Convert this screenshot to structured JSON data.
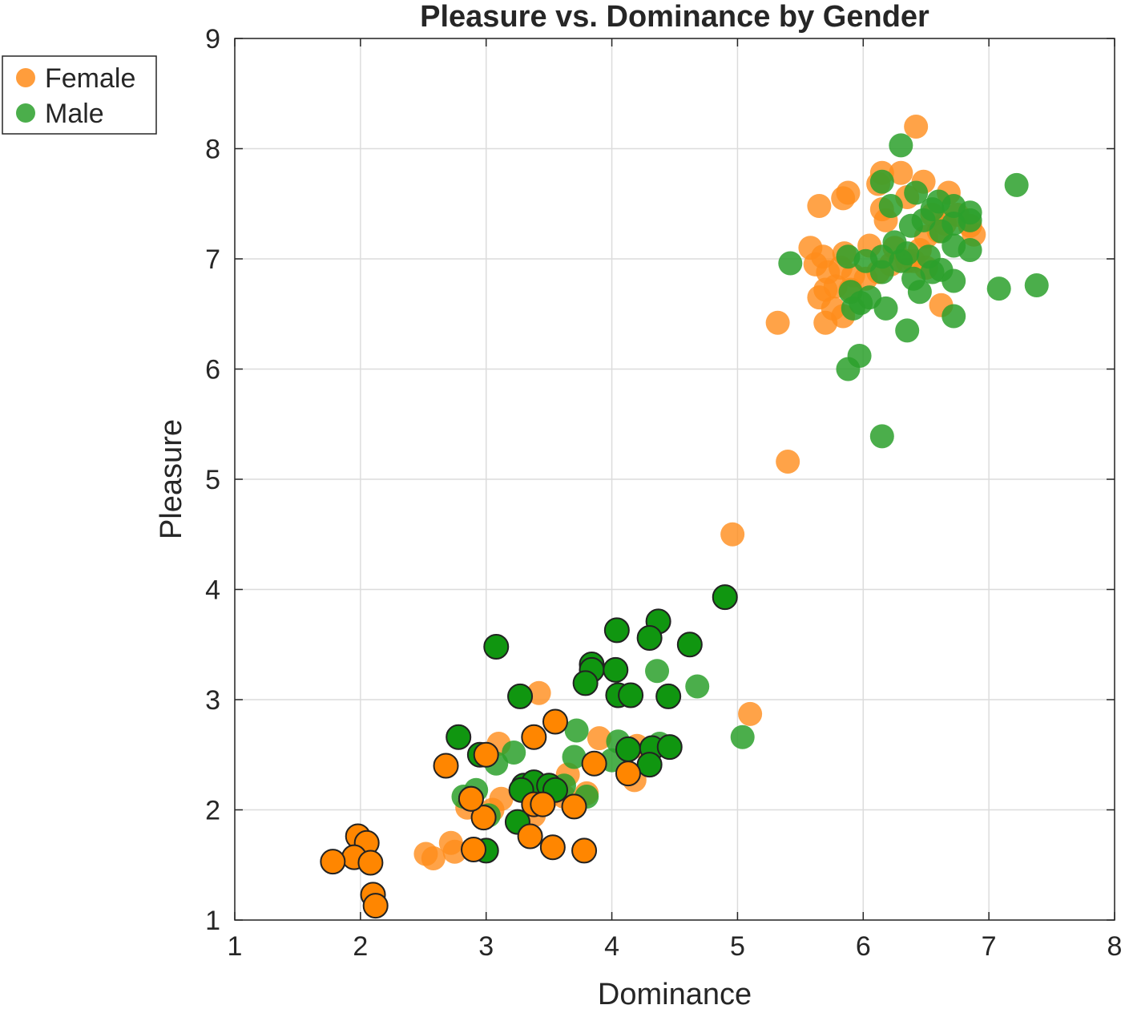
{
  "chart_data": {
    "type": "scatter",
    "title": "Pleasure vs. Dominance by Gender",
    "xlabel": "Dominance",
    "ylabel": "Pleasure",
    "xlim": [
      1,
      8
    ],
    "ylim": [
      1,
      9
    ],
    "xticks": [
      "1",
      "2",
      "3",
      "4",
      "5",
      "6",
      "7",
      "8"
    ],
    "yticks": [
      "1",
      "2",
      "3",
      "4",
      "5",
      "6",
      "7",
      "8",
      "9"
    ],
    "grid": true,
    "legend_placement": "outside-top-left",
    "series": [
      {
        "name": "Female",
        "color": "#ff8c1a",
        "points": [
          [
            6.42,
            8.2
          ],
          [
            6.15,
            7.78
          ],
          [
            6.3,
            7.78
          ],
          [
            6.48,
            7.7
          ],
          [
            6.12,
            7.68
          ],
          [
            5.88,
            7.6
          ],
          [
            5.84,
            7.55
          ],
          [
            5.65,
            7.48
          ],
          [
            6.68,
            7.6
          ],
          [
            6.35,
            7.56
          ],
          [
            6.15,
            7.45
          ],
          [
            6.18,
            7.35
          ],
          [
            6.55,
            7.4
          ],
          [
            6.65,
            7.32
          ],
          [
            6.75,
            7.4
          ],
          [
            6.85,
            7.3
          ],
          [
            6.88,
            7.22
          ],
          [
            6.6,
            7.25
          ],
          [
            6.5,
            7.2
          ],
          [
            5.58,
            7.1
          ],
          [
            5.68,
            7.02
          ],
          [
            5.85,
            7.05
          ],
          [
            6.05,
            7.12
          ],
          [
            6.25,
            7.1
          ],
          [
            6.45,
            7.08
          ],
          [
            6.35,
            6.98
          ],
          [
            6.22,
            6.95
          ],
          [
            6.12,
            6.88
          ],
          [
            6.02,
            6.82
          ],
          [
            5.92,
            6.85
          ],
          [
            5.82,
            6.92
          ],
          [
            5.72,
            6.88
          ],
          [
            5.62,
            6.95
          ],
          [
            5.7,
            6.72
          ],
          [
            5.78,
            6.75
          ],
          [
            5.9,
            6.72
          ],
          [
            5.65,
            6.65
          ],
          [
            5.76,
            6.55
          ],
          [
            5.84,
            6.48
          ],
          [
            5.7,
            6.42
          ],
          [
            5.32,
            6.42
          ],
          [
            6.62,
            6.58
          ],
          [
            6.4,
            6.98
          ],
          [
            6.5,
            6.92
          ],
          [
            5.4,
            5.16
          ],
          [
            4.96,
            4.5
          ],
          [
            5.1,
            2.87
          ],
          [
            3.42,
            3.06
          ],
          [
            3.9,
            2.65
          ],
          [
            4.2,
            2.58
          ],
          [
            4.18,
            2.27
          ],
          [
            3.65,
            2.32
          ],
          [
            3.8,
            2.15
          ],
          [
            3.62,
            2.12
          ],
          [
            3.48,
            2.1
          ],
          [
            3.1,
            2.6
          ],
          [
            3.12,
            2.1
          ],
          [
            2.85,
            2.02
          ],
          [
            3.05,
            2.0
          ],
          [
            3.38,
            1.95
          ],
          [
            2.72,
            1.7
          ],
          [
            2.75,
            1.62
          ],
          [
            2.52,
            1.6
          ],
          [
            2.58,
            1.56
          ]
        ]
      },
      {
        "name": "Male",
        "color": "#2ca02c",
        "points": [
          [
            6.3,
            8.03
          ],
          [
            7.22,
            7.67
          ],
          [
            6.15,
            7.7
          ],
          [
            6.42,
            7.6
          ],
          [
            6.6,
            7.52
          ],
          [
            6.72,
            7.48
          ],
          [
            6.85,
            7.42
          ],
          [
            6.22,
            7.48
          ],
          [
            6.55,
            7.45
          ],
          [
            6.48,
            7.35
          ],
          [
            6.38,
            7.3
          ],
          [
            6.72,
            7.32
          ],
          [
            6.85,
            7.35
          ],
          [
            6.62,
            7.25
          ],
          [
            6.25,
            7.15
          ],
          [
            6.35,
            7.05
          ],
          [
            6.52,
            7.02
          ],
          [
            6.72,
            7.12
          ],
          [
            6.85,
            7.08
          ],
          [
            6.15,
            7.02
          ],
          [
            6.02,
            6.98
          ],
          [
            5.88,
            7.02
          ],
          [
            5.42,
            6.96
          ],
          [
            6.15,
            6.88
          ],
          [
            6.3,
            6.98
          ],
          [
            6.4,
            6.82
          ],
          [
            6.55,
            6.88
          ],
          [
            6.62,
            6.9
          ],
          [
            6.72,
            6.8
          ],
          [
            6.45,
            6.7
          ],
          [
            5.9,
            6.7
          ],
          [
            5.98,
            6.6
          ],
          [
            6.05,
            6.65
          ],
          [
            5.92,
            6.55
          ],
          [
            6.18,
            6.55
          ],
          [
            6.72,
            6.48
          ],
          [
            6.35,
            6.35
          ],
          [
            7.08,
            6.73
          ],
          [
            7.38,
            6.76
          ],
          [
            5.97,
            6.12
          ],
          [
            5.88,
            6.0
          ],
          [
            6.15,
            5.39
          ],
          [
            4.68,
            3.12
          ],
          [
            4.36,
            3.26
          ],
          [
            5.04,
            2.66
          ],
          [
            3.72,
            2.72
          ],
          [
            4.05,
            2.62
          ],
          [
            4.38,
            2.6
          ],
          [
            3.7,
            2.48
          ],
          [
            3.22,
            2.52
          ],
          [
            3.08,
            2.42
          ],
          [
            2.92,
            2.18
          ],
          [
            2.82,
            2.12
          ],
          [
            3.62,
            2.22
          ],
          [
            3.8,
            2.12
          ],
          [
            3.02,
            1.95
          ],
          [
            4.0,
            2.45
          ]
        ]
      },
      {
        "name": "Male",
        "color": "#109610",
        "points": [
          [
            3.08,
            3.48
          ],
          [
            4.04,
            3.63
          ],
          [
            4.37,
            3.71
          ],
          [
            4.3,
            3.56
          ],
          [
            4.62,
            3.5
          ],
          [
            4.9,
            3.93
          ],
          [
            3.84,
            3.32
          ],
          [
            3.84,
            3.27
          ],
          [
            4.03,
            3.27
          ],
          [
            3.79,
            3.15
          ],
          [
            3.27,
            3.03
          ],
          [
            4.05,
            3.04
          ],
          [
            4.15,
            3.04
          ],
          [
            4.45,
            3.03
          ],
          [
            2.78,
            2.66
          ],
          [
            2.95,
            2.5
          ],
          [
            4.13,
            2.55
          ],
          [
            4.32,
            2.56
          ],
          [
            4.46,
            2.57
          ],
          [
            4.3,
            2.41
          ],
          [
            3.3,
            2.22
          ],
          [
            3.38,
            2.25
          ],
          [
            3.28,
            2.18
          ],
          [
            3.5,
            2.22
          ],
          [
            3.55,
            2.18
          ],
          [
            3.25,
            1.89
          ],
          [
            3.0,
            1.63
          ],
          [
            2.88,
            2.1
          ]
        ]
      },
      {
        "name": "Female",
        "color": "#ff8600",
        "points": [
          [
            3.55,
            2.8
          ],
          [
            3.38,
            2.66
          ],
          [
            2.68,
            2.4
          ],
          [
            3.0,
            2.5
          ],
          [
            3.86,
            2.42
          ],
          [
            4.13,
            2.33
          ],
          [
            3.38,
            2.05
          ],
          [
            3.45,
            2.05
          ],
          [
            3.7,
            2.03
          ],
          [
            2.98,
            1.93
          ],
          [
            3.35,
            1.76
          ],
          [
            3.53,
            1.66
          ],
          [
            3.78,
            1.63
          ],
          [
            2.9,
            1.64
          ],
          [
            1.98,
            1.76
          ],
          [
            2.05,
            1.7
          ],
          [
            1.95,
            1.57
          ],
          [
            1.78,
            1.53
          ],
          [
            2.08,
            1.52
          ],
          [
            2.1,
            1.23
          ],
          [
            2.12,
            1.13
          ],
          [
            2.88,
            2.1
          ]
        ]
      }
    ]
  },
  "legend": {
    "items": [
      {
        "label": "Female",
        "color": "#ff8c1a"
      },
      {
        "label": "Male",
        "color": "#2ca02c"
      }
    ]
  }
}
